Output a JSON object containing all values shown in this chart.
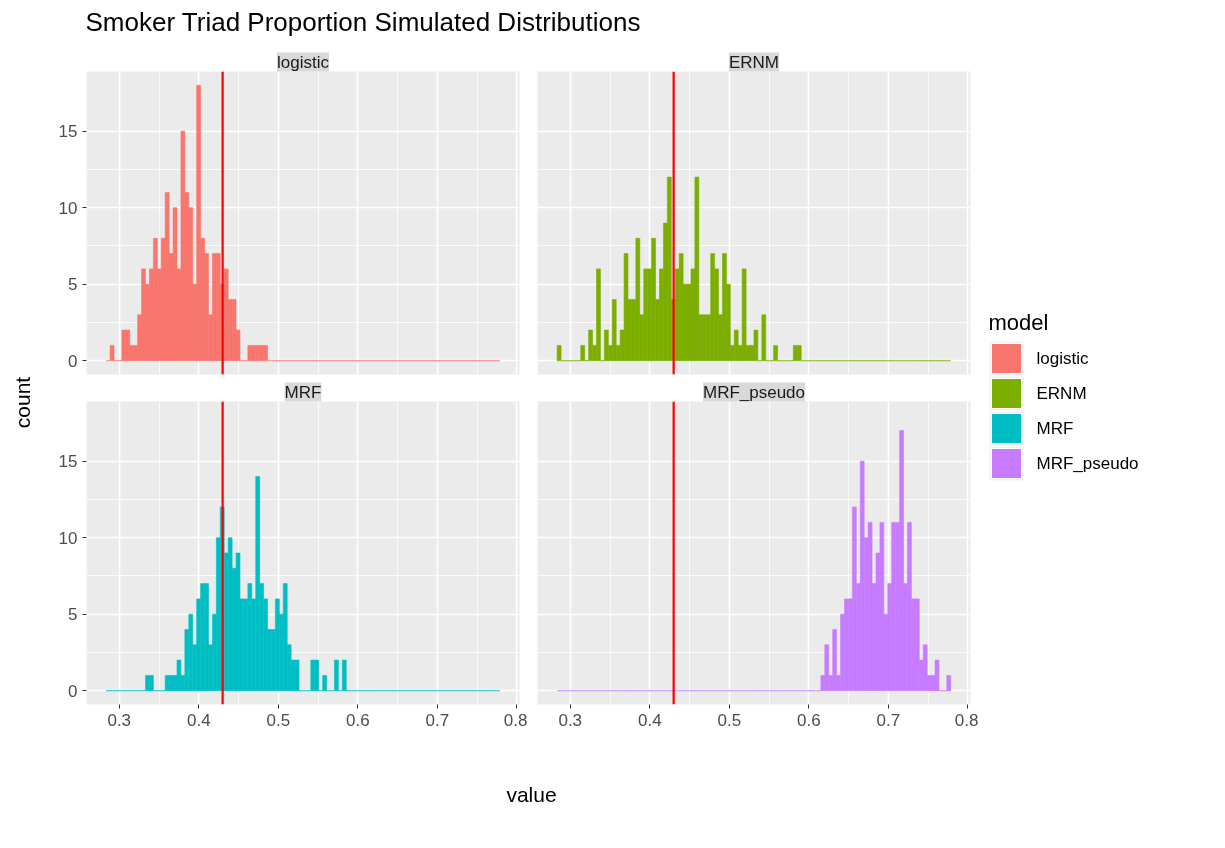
{
  "chart_data": [
    {
      "type": "histogram",
      "title": "Smoker Triad Proportion Simulated Distributions",
      "subtitle": "logistic",
      "ylabel": "count",
      "legend_title": "model",
      "legend": "right",
      "grid": true,
      "tick_labels": "y",
      "bins": [
        0.2835,
        0.28845,
        0.2934,
        0.29835,
        0.3033,
        0.30825,
        0.3132,
        0.31815,
        0.3231,
        0.32805,
        0.333,
        0.33795,
        0.3429,
        0.34785,
        0.3528,
        0.35775,
        0.3627,
        0.36765,
        0.3726,
        0.37755,
        0.3825,
        0.38745,
        0.3924,
        0.39735,
        0.4023,
        0.40725,
        0.4122,
        0.41715,
        0.4221,
        0.42705,
        0.432,
        0.43695,
        0.4419,
        0.44685,
        0.4518,
        0.45675,
        0.4617,
        0.46665,
        0.4716,
        0.47655,
        0.4815,
        0.48645,
        0.4914,
        0.49635,
        0.5013,
        0.50625,
        0.5112,
        0.51615,
        0.5211,
        0.52605,
        0.531,
        0.53595,
        0.5409,
        0.54585,
        0.5508,
        0.55575,
        0.5607,
        0.56565,
        0.5706,
        0.57555,
        0.5805,
        0.58545,
        0.5904,
        0.59535,
        0.6003,
        0.60525,
        0.6102,
        0.61515,
        0.6201,
        0.62505,
        0.63,
        0.63495,
        0.6399,
        0.64485,
        0.6498,
        0.65475,
        0.6597,
        0.66465,
        0.6696,
        0.67455,
        0.6795,
        0.68445,
        0.6894,
        0.69435,
        0.6993,
        0.70425,
        0.7092,
        0.71415,
        0.7191,
        0.72405,
        0.729,
        0.73395,
        0.7389,
        0.74385,
        0.7488,
        0.75375,
        0.7587,
        0.76365,
        0.7686,
        0.77355,
        0.7785
      ],
      "series": [
        {
          "name": "logistic",
          "color": "#f8766d",
          "values": [
            0,
            1,
            0,
            0,
            2,
            2,
            1,
            1,
            3,
            6,
            5,
            6,
            8,
            6,
            8,
            11,
            7,
            10,
            6,
            15,
            11,
            10,
            5,
            18,
            8,
            7,
            3,
            7,
            7,
            5,
            6,
            4,
            4,
            2,
            0,
            0,
            1,
            1,
            1,
            1,
            1,
            0,
            0,
            0,
            0,
            0,
            0,
            0,
            0,
            0,
            0,
            0,
            0,
            0,
            0,
            0,
            0,
            0,
            0,
            0,
            0,
            0,
            0,
            0,
            0,
            0,
            0,
            0,
            0,
            0,
            0,
            0,
            0,
            0,
            0,
            0,
            0,
            0,
            0,
            0,
            0,
            0,
            0,
            0,
            0,
            0,
            0,
            0,
            0,
            0,
            0,
            0,
            0,
            0,
            0,
            0,
            0,
            0,
            0,
            0
          ]
        }
      ],
      "ref_lines": [
        {
          "axis": "x",
          "value": 0.43,
          "color": "#ff0000"
        }
      ],
      "xlim": [
        0.2588,
        0.8033
      ],
      "ylim": [
        -0.9,
        18.9
      ],
      "xticks": [
        0.3,
        0.4,
        0.5,
        0.6,
        0.7,
        0.8
      ],
      "yticks": [
        0,
        5,
        10,
        15
      ]
    },
    {
      "type": "histogram",
      "subtitle": "ERNM",
      "grid": true,
      "tick_labels": false,
      "bins": [
        0.2835,
        0.28845,
        0.2934,
        0.29835,
        0.3033,
        0.30825,
        0.3132,
        0.31815,
        0.3231,
        0.32805,
        0.333,
        0.33795,
        0.3429,
        0.34785,
        0.3528,
        0.35775,
        0.3627,
        0.36765,
        0.3726,
        0.37755,
        0.3825,
        0.38745,
        0.3924,
        0.39735,
        0.4023,
        0.40725,
        0.4122,
        0.41715,
        0.4221,
        0.42705,
        0.432,
        0.43695,
        0.4419,
        0.44685,
        0.4518,
        0.45675,
        0.4617,
        0.46665,
        0.4716,
        0.47655,
        0.4815,
        0.48645,
        0.4914,
        0.49635,
        0.5013,
        0.50625,
        0.5112,
        0.51615,
        0.5211,
        0.52605,
        0.531,
        0.53595,
        0.5409,
        0.54585,
        0.5508,
        0.55575,
        0.5607,
        0.56565,
        0.5706,
        0.57555,
        0.5805,
        0.58545,
        0.5904,
        0.59535,
        0.6003,
        0.60525,
        0.6102,
        0.61515,
        0.6201,
        0.62505,
        0.63,
        0.63495,
        0.6399,
        0.64485,
        0.6498,
        0.65475,
        0.6597,
        0.66465,
        0.6696,
        0.67455,
        0.6795,
        0.68445,
        0.6894,
        0.69435,
        0.6993,
        0.70425,
        0.7092,
        0.71415,
        0.7191,
        0.72405,
        0.729,
        0.73395,
        0.7389,
        0.74385,
        0.7488,
        0.75375,
        0.7587,
        0.76365,
        0.7686,
        0.77355,
        0.7785
      ],
      "series": [
        {
          "name": "ERNM",
          "color": "#7cae00",
          "values": [
            1,
            0,
            0,
            0,
            0,
            0,
            1,
            0,
            2,
            1,
            6,
            0,
            2,
            1,
            4,
            1,
            2,
            7,
            4,
            4,
            8,
            3,
            6,
            6,
            8,
            4,
            6,
            9,
            12,
            4,
            6,
            7,
            5,
            5,
            6,
            12,
            3,
            3,
            3,
            7,
            6,
            3,
            7,
            5,
            1,
            2,
            1,
            6,
            1,
            1,
            2,
            0,
            3,
            0,
            0,
            1,
            0,
            0,
            0,
            0,
            1,
            1,
            0,
            0,
            0,
            0,
            0,
            0,
            0,
            0,
            0,
            0,
            0,
            0,
            0,
            0,
            0,
            0,
            0,
            0,
            0,
            0,
            0,
            0,
            0,
            0,
            0,
            0,
            0,
            0,
            0,
            0,
            0,
            0,
            0,
            0,
            0,
            0,
            0,
            0
          ]
        }
      ],
      "ref_lines": [
        {
          "axis": "x",
          "value": 0.43,
          "color": "#ff0000"
        }
      ],
      "xlim": [
        0.2588,
        0.8033
      ],
      "ylim": [
        -0.9,
        18.9
      ],
      "xticks": [
        0.3,
        0.4,
        0.5,
        0.6,
        0.7,
        0.8
      ],
      "yticks": [
        0,
        5,
        10,
        15
      ]
    },
    {
      "type": "histogram",
      "subtitle": "MRF",
      "xlabel": "value",
      "grid": true,
      "bins": [
        0.2835,
        0.28845,
        0.2934,
        0.29835,
        0.3033,
        0.30825,
        0.3132,
        0.31815,
        0.3231,
        0.32805,
        0.333,
        0.33795,
        0.3429,
        0.34785,
        0.3528,
        0.35775,
        0.3627,
        0.36765,
        0.3726,
        0.37755,
        0.3825,
        0.38745,
        0.3924,
        0.39735,
        0.4023,
        0.40725,
        0.4122,
        0.41715,
        0.4221,
        0.42705,
        0.432,
        0.43695,
        0.4419,
        0.44685,
        0.4518,
        0.45675,
        0.4617,
        0.46665,
        0.4716,
        0.47655,
        0.4815,
        0.48645,
        0.4914,
        0.49635,
        0.5013,
        0.50625,
        0.5112,
        0.51615,
        0.5211,
        0.52605,
        0.531,
        0.53595,
        0.5409,
        0.54585,
        0.5508,
        0.55575,
        0.5607,
        0.56565,
        0.5706,
        0.57555,
        0.5805,
        0.58545,
        0.5904,
        0.59535,
        0.6003,
        0.60525,
        0.6102,
        0.61515,
        0.6201,
        0.62505,
        0.63,
        0.63495,
        0.6399,
        0.64485,
        0.6498,
        0.65475,
        0.6597,
        0.66465,
        0.6696,
        0.67455,
        0.6795,
        0.68445,
        0.6894,
        0.69435,
        0.6993,
        0.70425,
        0.7092,
        0.71415,
        0.7191,
        0.72405,
        0.729,
        0.73395,
        0.7389,
        0.74385,
        0.7488,
        0.75375,
        0.7587,
        0.76365,
        0.7686,
        0.77355,
        0.7785
      ],
      "series": [
        {
          "name": "MRF",
          "color": "#00bfc4",
          "values": [
            0,
            0,
            0,
            0,
            0,
            0,
            0,
            0,
            0,
            0,
            1,
            1,
            0,
            0,
            0,
            1,
            1,
            1,
            2,
            1,
            4,
            5,
            3,
            6,
            7,
            7,
            3,
            5,
            10,
            12,
            9,
            10,
            8,
            9,
            6,
            6,
            7,
            6,
            14,
            7,
            6,
            4,
            4,
            6,
            5,
            7,
            3,
            2,
            2,
            0,
            0,
            0,
            2,
            2,
            0,
            1,
            0,
            0,
            2,
            0,
            2,
            0,
            0,
            0,
            0,
            0,
            0,
            0,
            0,
            0,
            0,
            0,
            0,
            0,
            0,
            0,
            0,
            0,
            0,
            0,
            0,
            0,
            0,
            0,
            0,
            0,
            0,
            0,
            0,
            0,
            0,
            0,
            0,
            0,
            0,
            0,
            0,
            0,
            0,
            0
          ]
        }
      ],
      "ref_lines": [
        {
          "axis": "x",
          "value": 0.43,
          "color": "#ff0000"
        }
      ],
      "xlim": [
        0.2588,
        0.8033
      ],
      "ylim": [
        -0.9,
        18.9
      ],
      "xticks": [
        0.3,
        0.4,
        0.5,
        0.6,
        0.7,
        0.8
      ],
      "yticks": [
        0,
        5,
        10,
        15
      ]
    },
    {
      "type": "histogram",
      "subtitle": "MRF_pseudo",
      "grid": true,
      "tick_labels": "x",
      "bins": [
        0.2835,
        0.28845,
        0.2934,
        0.29835,
        0.3033,
        0.30825,
        0.3132,
        0.31815,
        0.3231,
        0.32805,
        0.333,
        0.33795,
        0.3429,
        0.34785,
        0.3528,
        0.35775,
        0.3627,
        0.36765,
        0.3726,
        0.37755,
        0.3825,
        0.38745,
        0.3924,
        0.39735,
        0.4023,
        0.40725,
        0.4122,
        0.41715,
        0.4221,
        0.42705,
        0.432,
        0.43695,
        0.4419,
        0.44685,
        0.4518,
        0.45675,
        0.4617,
        0.46665,
        0.4716,
        0.47655,
        0.4815,
        0.48645,
        0.4914,
        0.49635,
        0.5013,
        0.50625,
        0.5112,
        0.51615,
        0.5211,
        0.52605,
        0.531,
        0.53595,
        0.5409,
        0.54585,
        0.5508,
        0.55575,
        0.5607,
        0.56565,
        0.5706,
        0.57555,
        0.5805,
        0.58545,
        0.5904,
        0.59535,
        0.6003,
        0.60525,
        0.6102,
        0.61515,
        0.6201,
        0.62505,
        0.63,
        0.63495,
        0.6399,
        0.64485,
        0.6498,
        0.65475,
        0.6597,
        0.66465,
        0.6696,
        0.67455,
        0.6795,
        0.68445,
        0.6894,
        0.69435,
        0.6993,
        0.70425,
        0.7092,
        0.71415,
        0.7191,
        0.72405,
        0.729,
        0.73395,
        0.7389,
        0.74385,
        0.7488,
        0.75375,
        0.7587,
        0.76365,
        0.7686,
        0.77355,
        0.7785
      ],
      "series": [
        {
          "name": "MRF_pseudo",
          "color": "#c77cff",
          "values": [
            0,
            0,
            0,
            0,
            0,
            0,
            0,
            0,
            0,
            0,
            0,
            0,
            0,
            0,
            0,
            0,
            0,
            0,
            0,
            0,
            0,
            0,
            0,
            0,
            0,
            0,
            0,
            0,
            0,
            0,
            0,
            0,
            0,
            0,
            0,
            0,
            0,
            0,
            0,
            0,
            0,
            0,
            0,
            0,
            0,
            0,
            0,
            0,
            0,
            0,
            0,
            0,
            0,
            0,
            0,
            0,
            0,
            0,
            0,
            0,
            0,
            0,
            0,
            0,
            0,
            0,
            0,
            1,
            3,
            1,
            4,
            1,
            5,
            6,
            6,
            12,
            7,
            15,
            10,
            11,
            7,
            9,
            11,
            5,
            7,
            11,
            11,
            17,
            7,
            11,
            6,
            6,
            2,
            3,
            1,
            1,
            2,
            0,
            0,
            1
          ]
        }
      ],
      "ref_lines": [
        {
          "axis": "x",
          "value": 0.43,
          "color": "#ff0000"
        }
      ],
      "xlim": [
        0.2588,
        0.8033
      ],
      "ylim": [
        -0.9,
        18.9
      ],
      "xticks": [
        0.3,
        0.4,
        0.5,
        0.6,
        0.7,
        0.8
      ],
      "yticks": [
        0,
        5,
        10,
        15
      ]
    }
  ]
}
